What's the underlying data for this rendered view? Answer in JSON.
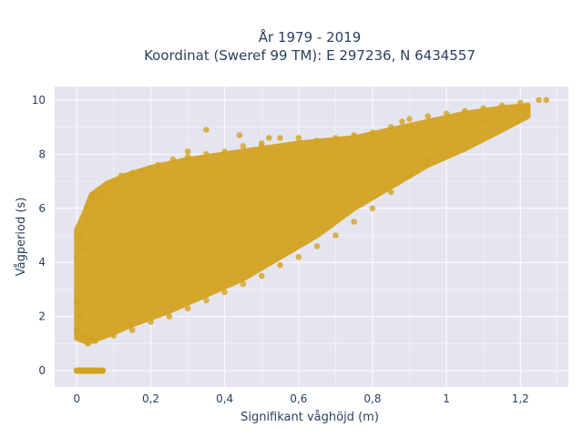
{
  "chart_data": {
    "type": "scatter",
    "title": [
      "År 1979 - 2019",
      "Koordinat (Sweref 99 TM): E 297236, N 6434557"
    ],
    "xlabel": "Signifikant våghöjd (m)",
    "ylabel": "Vågperiod (s)",
    "xlim": [
      -0.06,
      1.33
    ],
    "ylim": [
      -0.6,
      10.5
    ],
    "xticks": [
      0,
      0.2,
      0.4,
      0.6,
      0.8,
      1,
      1.2
    ],
    "xtick_labels": [
      "0",
      "0,2",
      "0,4",
      "0,6",
      "0,8",
      "1",
      "1,2"
    ],
    "yticks": [
      0,
      2,
      4,
      6,
      8,
      10
    ],
    "ytick_labels": [
      "0",
      "2",
      "4",
      "6",
      "8",
      "10"
    ],
    "grid": true,
    "marker_color": "#d4a321",
    "background_color": "#e5e5f0",
    "grid_color": "#ffffff",
    "series": [
      {
        "points": [
          [
            0.0,
            2.5
          ],
          [
            0.0,
            1.5
          ],
          [
            0.01,
            5.0
          ],
          [
            0.01,
            2.0
          ],
          [
            0.02,
            4.5
          ],
          [
            0.02,
            1.3
          ],
          [
            0.03,
            5.5
          ],
          [
            0.03,
            6.0
          ],
          [
            0.04,
            6.4
          ],
          [
            0.04,
            1.2
          ],
          [
            0.06,
            6.5
          ],
          [
            0.07,
            6.3
          ],
          [
            0.08,
            6.8
          ],
          [
            0.1,
            7.0
          ],
          [
            0.12,
            7.2
          ],
          [
            0.15,
            7.3
          ],
          [
            0.18,
            7.4
          ],
          [
            0.22,
            7.6
          ],
          [
            0.26,
            7.8
          ],
          [
            0.3,
            7.9
          ],
          [
            0.35,
            8.0
          ],
          [
            0.4,
            8.1
          ],
          [
            0.45,
            8.3
          ],
          [
            0.5,
            8.4
          ],
          [
            0.55,
            8.6
          ],
          [
            0.6,
            8.6
          ],
          [
            0.65,
            8.5
          ],
          [
            0.7,
            8.6
          ],
          [
            0.75,
            8.7
          ],
          [
            0.8,
            8.8
          ],
          [
            0.85,
            9.0
          ],
          [
            0.88,
            9.2
          ],
          [
            0.9,
            9.3
          ],
          [
            0.95,
            9.4
          ],
          [
            1.0,
            9.5
          ],
          [
            1.05,
            9.6
          ],
          [
            1.1,
            9.7
          ],
          [
            1.15,
            9.8
          ],
          [
            1.2,
            9.9
          ],
          [
            1.25,
            10.0
          ],
          [
            1.27,
            10.0
          ],
          [
            0.35,
            8.9
          ],
          [
            0.5,
            8.3
          ],
          [
            0.52,
            8.6
          ],
          [
            0.44,
            8.7
          ],
          [
            0.3,
            8.1
          ],
          [
            1.2,
            9.7
          ],
          [
            1.22,
            9.8
          ],
          [
            1.1,
            9.2
          ],
          [
            1.05,
            9.0
          ],
          [
            1.0,
            8.4
          ],
          [
            0.95,
            7.8
          ],
          [
            0.9,
            7.2
          ],
          [
            0.85,
            6.6
          ],
          [
            0.8,
            6.0
          ],
          [
            0.75,
            5.5
          ],
          [
            0.7,
            5.0
          ],
          [
            0.65,
            4.6
          ],
          [
            0.6,
            4.2
          ],
          [
            0.55,
            3.9
          ],
          [
            0.5,
            3.5
          ],
          [
            0.45,
            3.2
          ],
          [
            0.4,
            2.9
          ],
          [
            0.35,
            2.6
          ],
          [
            0.3,
            2.3
          ],
          [
            0.25,
            2.0
          ],
          [
            0.2,
            1.8
          ],
          [
            0.15,
            1.5
          ],
          [
            0.1,
            1.3
          ],
          [
            0.05,
            1.1
          ],
          [
            0.03,
            1.0
          ]
        ]
      }
    ]
  }
}
